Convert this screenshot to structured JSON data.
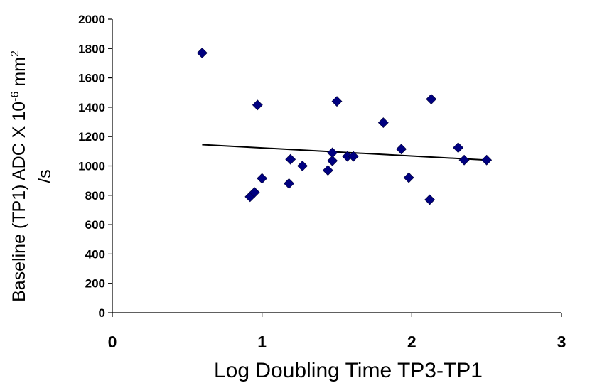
{
  "chart_data": {
    "type": "scatter",
    "xlabel": "Log Doubling Time TP3-TP1",
    "ylabel": {
      "line1_pre": "Baseline (TP1) ADC X 10",
      "line1_exp": "-6",
      "line1_mid": " mm",
      "line1_sup": "2",
      "line2": "/s"
    },
    "xlim": [
      0,
      3
    ],
    "ylim": [
      0,
      2000
    ],
    "xticks": [
      "0",
      "1",
      "2",
      "3"
    ],
    "yticks": [
      "0",
      "200",
      "400",
      "600",
      "800",
      "1000",
      "1200",
      "1400",
      "1600",
      "1800",
      "2000"
    ],
    "grid": false,
    "legend": "none",
    "marker": "diamond",
    "marker_color": "#000080",
    "trendline_color": "#000000",
    "points": [
      {
        "x": 0.6,
        "y": 1770
      },
      {
        "x": 0.92,
        "y": 790
      },
      {
        "x": 0.95,
        "y": 820
      },
      {
        "x": 0.97,
        "y": 1415
      },
      {
        "x": 1.0,
        "y": 915
      },
      {
        "x": 1.18,
        "y": 880
      },
      {
        "x": 1.19,
        "y": 1045
      },
      {
        "x": 1.27,
        "y": 1000
      },
      {
        "x": 1.44,
        "y": 970
      },
      {
        "x": 1.47,
        "y": 1090
      },
      {
        "x": 1.47,
        "y": 1035
      },
      {
        "x": 1.5,
        "y": 1440
      },
      {
        "x": 1.57,
        "y": 1065
      },
      {
        "x": 1.61,
        "y": 1065
      },
      {
        "x": 1.81,
        "y": 1295
      },
      {
        "x": 1.93,
        "y": 1115
      },
      {
        "x": 1.98,
        "y": 920
      },
      {
        "x": 2.12,
        "y": 770
      },
      {
        "x": 2.13,
        "y": 1455
      },
      {
        "x": 2.31,
        "y": 1125
      },
      {
        "x": 2.35,
        "y": 1040
      },
      {
        "x": 2.5,
        "y": 1040
      }
    ],
    "trendline": {
      "x": [
        0.6,
        2.5
      ],
      "y": [
        1145,
        1040
      ]
    }
  }
}
